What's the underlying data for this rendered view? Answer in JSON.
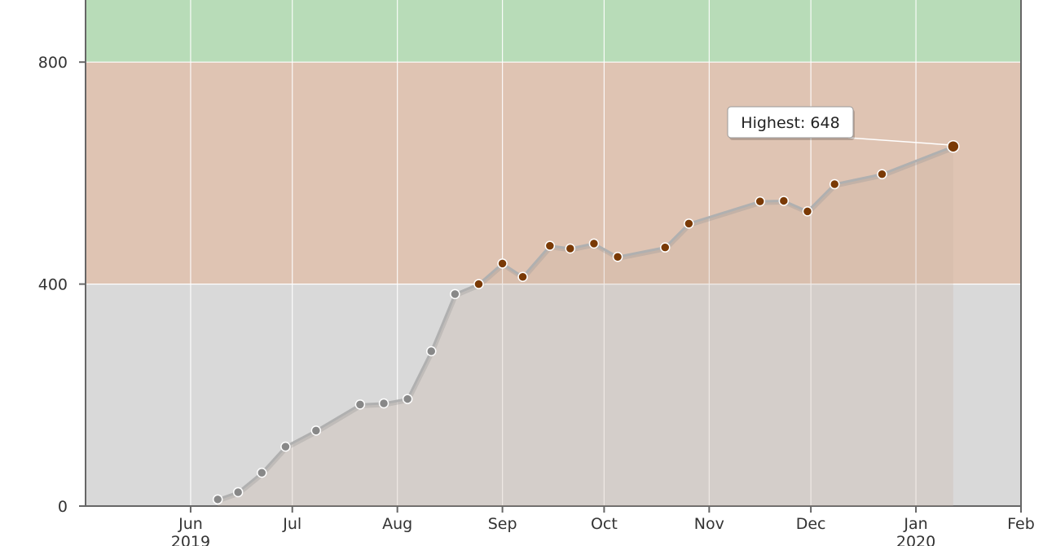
{
  "chart_data": {
    "type": "line",
    "x_axis": {
      "type": "date",
      "range": [
        "2019-05-01",
        "2020-02-01"
      ],
      "ticks": [
        {
          "date": "2019-06-01",
          "label": "Jun",
          "sublabel": "2019"
        },
        {
          "date": "2019-07-01",
          "label": "Jul",
          "sublabel": ""
        },
        {
          "date": "2019-08-01",
          "label": "Aug",
          "sublabel": ""
        },
        {
          "date": "2019-09-01",
          "label": "Sep",
          "sublabel": ""
        },
        {
          "date": "2019-10-01",
          "label": "Oct",
          "sublabel": ""
        },
        {
          "date": "2019-11-01",
          "label": "Nov",
          "sublabel": ""
        },
        {
          "date": "2019-12-01",
          "label": "Dec",
          "sublabel": ""
        },
        {
          "date": "2020-01-01",
          "label": "Jan",
          "sublabel": "2020"
        },
        {
          "date": "2020-02-01",
          "label": "Feb",
          "sublabel": ""
        }
      ]
    },
    "y_axis": {
      "range": [
        0,
        1000
      ],
      "ticks": [
        0,
        400,
        800
      ]
    },
    "bands": [
      {
        "from": 0,
        "to": 400,
        "color": "#d9d9d9"
      },
      {
        "from": 400,
        "to": 800,
        "color": "#dfc4b3"
      },
      {
        "from": 800,
        "to": 1000,
        "color": "#b8dcb8"
      }
    ],
    "grid": true,
    "colors": {
      "line": "#b0b0b0",
      "point_low": "#888888",
      "point_high": "#7a3a06",
      "point_threshold": 400,
      "axis": "#666666",
      "gridline": "#ffffff"
    },
    "series": [
      {
        "points": [
          {
            "x": "2019-06-09",
            "y": 12
          },
          {
            "x": "2019-06-15",
            "y": 25
          },
          {
            "x": "2019-06-22",
            "y": 60
          },
          {
            "x": "2019-06-29",
            "y": 107
          },
          {
            "x": "2019-07-08",
            "y": 136
          },
          {
            "x": "2019-07-21",
            "y": 183
          },
          {
            "x": "2019-07-28",
            "y": 185
          },
          {
            "x": "2019-08-04",
            "y": 193
          },
          {
            "x": "2019-08-11",
            "y": 279
          },
          {
            "x": "2019-08-18",
            "y": 382
          },
          {
            "x": "2019-08-25",
            "y": 400
          },
          {
            "x": "2019-09-01",
            "y": 437
          },
          {
            "x": "2019-09-07",
            "y": 413
          },
          {
            "x": "2019-09-15",
            "y": 469
          },
          {
            "x": "2019-09-21",
            "y": 464
          },
          {
            "x": "2019-09-28",
            "y": 473
          },
          {
            "x": "2019-10-05",
            "y": 449
          },
          {
            "x": "2019-10-19",
            "y": 466
          },
          {
            "x": "2019-10-26",
            "y": 509
          },
          {
            "x": "2019-11-16",
            "y": 549
          },
          {
            "x": "2019-11-23",
            "y": 550
          },
          {
            "x": "2019-11-30",
            "y": 531
          },
          {
            "x": "2019-12-08",
            "y": 580
          },
          {
            "x": "2019-12-22",
            "y": 598
          },
          {
            "x": "2020-01-12",
            "y": 648
          }
        ]
      }
    ],
    "annotation": {
      "text": "Highest: 648",
      "x": "2020-01-12",
      "y": 648
    }
  }
}
